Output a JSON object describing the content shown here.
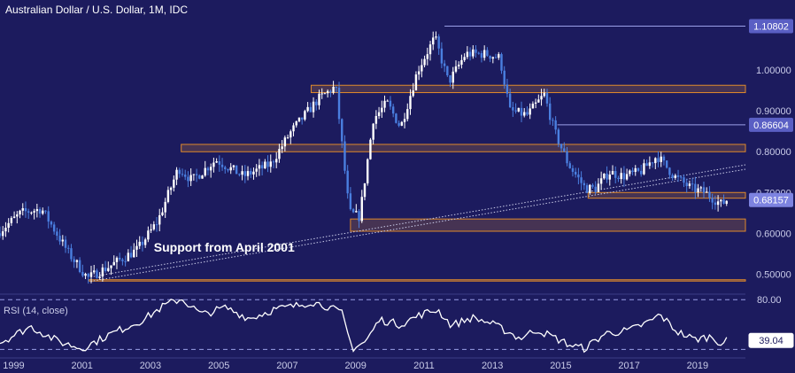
{
  "header": {
    "title": "Australian Dollar / U.S. Dollar, 1M, IDC"
  },
  "colors": {
    "background": "#1c1b5e",
    "up_candle": "#ffffff",
    "down_candle": "#4a7fe0",
    "zone_border": "#e08a2c",
    "tag_fill": "#5a5fc4",
    "rsi_line": "#ffffff",
    "text": "#ffffff",
    "axis_text": "#c9cbe8"
  },
  "chart_data": {
    "type": "candlestick",
    "title": "Australian Dollar / U.S. Dollar, 1M, IDC",
    "xlabel": "",
    "ylabel": "",
    "x_range": [
      1998.6,
      2020.4
    ],
    "ylim": [
      0.455,
      1.12
    ],
    "grid": false,
    "x_ticks": [
      "1999",
      "2001",
      "2003",
      "2005",
      "2007",
      "2009",
      "2011",
      "2013",
      "2015",
      "2017",
      "2019"
    ],
    "y_ticks": [
      "0.50000",
      "0.60000",
      "0.70000",
      "0.80000",
      "0.90000",
      "1.00000"
    ],
    "price_keypoints": [
      [
        1998.6,
        0.6
      ],
      [
        1999.3,
        0.65
      ],
      [
        1999.9,
        0.66
      ],
      [
        2000.7,
        0.55
      ],
      [
        2001.25,
        0.49
      ],
      [
        2001.9,
        0.52
      ],
      [
        2002.7,
        0.56
      ],
      [
        2003.3,
        0.63
      ],
      [
        2003.9,
        0.76
      ],
      [
        2004.3,
        0.73
      ],
      [
        2005.0,
        0.78
      ],
      [
        2005.8,
        0.74
      ],
      [
        2006.6,
        0.77
      ],
      [
        2007.2,
        0.85
      ],
      [
        2007.6,
        0.89
      ],
      [
        2008.0,
        0.93
      ],
      [
        2008.5,
        0.96
      ],
      [
        2008.9,
        0.65
      ],
      [
        2009.2,
        0.64
      ],
      [
        2009.6,
        0.88
      ],
      [
        2010.0,
        0.92
      ],
      [
        2010.4,
        0.86
      ],
      [
        2010.9,
        1.0
      ],
      [
        2011.4,
        1.08
      ],
      [
        2011.8,
        0.97
      ],
      [
        2012.3,
        1.04
      ],
      [
        2012.9,
        1.04
      ],
      [
        2013.3,
        1.03
      ],
      [
        2013.6,
        0.9
      ],
      [
        2014.1,
        0.89
      ],
      [
        2014.6,
        0.94
      ],
      [
        2014.9,
        0.85
      ],
      [
        2015.3,
        0.77
      ],
      [
        2015.8,
        0.71
      ],
      [
        2016.1,
        0.71
      ],
      [
        2016.5,
        0.75
      ],
      [
        2016.9,
        0.74
      ],
      [
        2017.4,
        0.75
      ],
      [
        2017.9,
        0.79
      ],
      [
        2018.4,
        0.74
      ],
      [
        2018.9,
        0.71
      ],
      [
        2019.3,
        0.7
      ],
      [
        2019.8,
        0.67
      ],
      [
        2019.9,
        0.6816
      ]
    ],
    "horizontal_lines": [
      {
        "label": "1.10802",
        "value": 1.10802
      },
      {
        "label": "0.86604",
        "value": 0.86604
      },
      {
        "label": "0.68157",
        "value": 0.68157,
        "current": true
      }
    ],
    "zones": [
      {
        "from": 2007.7,
        "to": 2020.4,
        "y1": 0.945,
        "y2": 0.963
      },
      {
        "from": 2003.9,
        "to": 2020.4,
        "y1": 0.8,
        "y2": 0.818
      },
      {
        "from": 2015.8,
        "to": 2020.4,
        "y1": 0.686,
        "y2": 0.7
      },
      {
        "from": 2008.85,
        "to": 2020.4,
        "y1": 0.605,
        "y2": 0.635
      },
      {
        "from": 2001.2,
        "to": 2020.4,
        "y1": 0.483,
        "y2": 0.486
      }
    ],
    "trendline": {
      "x1": 2001.25,
      "y1": 0.482,
      "x2": 2020.4,
      "y2": 0.757
    },
    "annotations": [
      {
        "text": "Support from April 2001",
        "x": 2003.1,
        "y": 0.555
      }
    ],
    "rsi": {
      "label": "RSI (14, close)",
      "current": "39.04",
      "upper_label": "80.00",
      "upper": 80,
      "lower": 30,
      "ylim": [
        25,
        82
      ],
      "points": [
        [
          1998.6,
          37
        ],
        [
          1999.5,
          53
        ],
        [
          2000.3,
          38
        ],
        [
          2001.0,
          31
        ],
        [
          2001.8,
          45
        ],
        [
          2002.8,
          60
        ],
        [
          2003.4,
          74
        ],
        [
          2003.9,
          81
        ],
        [
          2004.5,
          65
        ],
        [
          2005.2,
          72
        ],
        [
          2005.9,
          61
        ],
        [
          2006.6,
          70
        ],
        [
          2007.3,
          74
        ],
        [
          2007.7,
          78
        ],
        [
          2008.2,
          73
        ],
        [
          2008.6,
          66
        ],
        [
          2008.9,
          31
        ],
        [
          2009.3,
          38
        ],
        [
          2009.7,
          60
        ],
        [
          2010.3,
          55
        ],
        [
          2010.9,
          65
        ],
        [
          2011.4,
          70
        ],
        [
          2011.8,
          54
        ],
        [
          2012.4,
          62
        ],
        [
          2012.9,
          57
        ],
        [
          2013.5,
          47
        ],
        [
          2013.8,
          41
        ],
        [
          2014.3,
          50
        ],
        [
          2014.8,
          42
        ],
        [
          2015.3,
          34
        ],
        [
          2015.7,
          31
        ],
        [
          2016.3,
          46
        ],
        [
          2017.0,
          49
        ],
        [
          2017.6,
          58
        ],
        [
          2017.9,
          65
        ],
        [
          2018.4,
          48
        ],
        [
          2018.9,
          40
        ],
        [
          2019.4,
          43
        ],
        [
          2019.7,
          36
        ],
        [
          2019.9,
          39.04
        ]
      ]
    }
  }
}
